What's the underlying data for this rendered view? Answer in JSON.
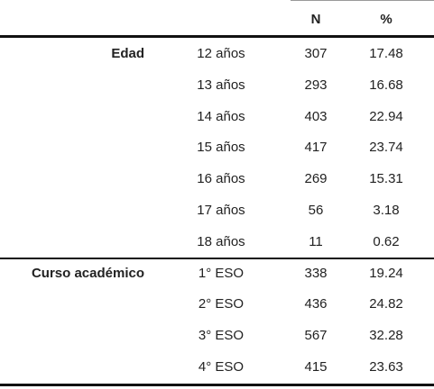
{
  "table": {
    "header": [
      "N",
      "%"
    ],
    "groups": [
      {
        "label": "Edad",
        "rows": [
          [
            "12 años",
            307,
            17.48
          ],
          [
            "13 años",
            293,
            16.68
          ],
          [
            "14 años",
            403,
            22.94
          ],
          [
            "15 años",
            417,
            23.74
          ],
          [
            "16 años",
            269,
            15.31
          ],
          [
            "17 años",
            56,
            3.18
          ],
          [
            "18 años",
            11,
            0.62
          ]
        ]
      },
      {
        "label": "Curso académico",
        "rows": [
          [
            "1° ESO",
            338,
            19.24
          ],
          [
            "2° ESO",
            436,
            24.82
          ],
          [
            "3° ESO",
            567,
            32.28
          ],
          [
            "4° ESO",
            415,
            23.63
          ]
        ]
      }
    ]
  }
}
